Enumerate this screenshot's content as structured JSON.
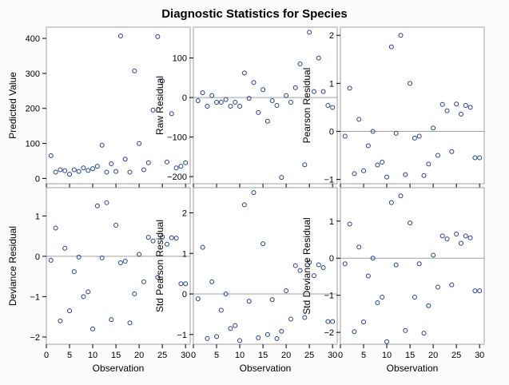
{
  "title": "Diagnostic Statistics for Species",
  "colors": {
    "marker": "#1f3f8f",
    "frame": "#a0a0a0",
    "refline": "#a0a0a0",
    "plot_bg": "#ffffff",
    "page_bg": "#fbfbfb"
  },
  "chart_data": [
    {
      "type": "scatter",
      "ylabel": "Predicted Value",
      "xlabel": "",
      "xlim": [
        0,
        31
      ],
      "ylim": [
        -15,
        432
      ],
      "xticks": [
        0,
        5,
        10,
        15,
        20,
        25,
        30
      ],
      "yticks": [
        0,
        100,
        200,
        300,
        400
      ],
      "reference_line": null,
      "x": [
        1,
        2,
        3,
        4,
        5,
        6,
        7,
        8,
        9,
        10,
        11,
        12,
        13,
        14,
        15,
        16,
        17,
        18,
        19,
        20,
        21,
        22,
        23,
        24,
        25,
        26,
        27,
        28,
        29,
        30
      ],
      "y": [
        65,
        18,
        25,
        22,
        12,
        25,
        20,
        30,
        23,
        28,
        35,
        95,
        18,
        42,
        20,
        407,
        55,
        18,
        307,
        100,
        25,
        45,
        195,
        405,
        278,
        47,
        185,
        30,
        35,
        45
      ]
    },
    {
      "type": "scatter",
      "ylabel": "Raw Residual",
      "xlabel": "",
      "xlim": [
        0,
        31
      ],
      "ylim": [
        -218,
        178
      ],
      "xticks": [
        0,
        5,
        10,
        15,
        20,
        25,
        30
      ],
      "yticks": [
        -200,
        -100,
        0,
        100
      ],
      "reference_line": 0,
      "x": [
        1,
        2,
        3,
        4,
        5,
        6,
        7,
        8,
        9,
        10,
        11,
        12,
        13,
        14,
        15,
        16,
        17,
        18,
        19,
        20,
        21,
        22,
        23,
        24,
        25,
        26,
        27,
        28,
        29,
        30
      ],
      "y": [
        -8,
        12,
        -22,
        5,
        -12,
        -12,
        -5,
        -22,
        -12,
        -22,
        62,
        -2,
        38,
        -38,
        20,
        -60,
        -8,
        -20,
        -202,
        5,
        -12,
        25,
        85,
        -170,
        165,
        15,
        100,
        15,
        -20,
        -25
      ]
    },
    {
      "type": "scatter",
      "ylabel": "Pearson Residual",
      "xlabel": "",
      "xlim": [
        0,
        31
      ],
      "ylim": [
        -1.09,
        2.17
      ],
      "xticks": [
        0,
        5,
        10,
        15,
        20,
        25,
        30
      ],
      "yticks": [
        -1,
        0,
        1,
        2
      ],
      "reference_line": 0,
      "x": [
        1,
        2,
        3,
        4,
        5,
        6,
        7,
        8,
        9,
        10,
        11,
        12,
        13,
        14,
        15,
        16,
        17,
        18,
        19,
        20,
        21,
        22,
        23,
        24,
        25,
        26,
        27,
        28,
        29,
        30
      ],
      "y": [
        -0.1,
        0.9,
        -0.88,
        0.25,
        -0.82,
        -0.3,
        0,
        -0.7,
        -0.64,
        -0.95,
        1.76,
        -0.04,
        2,
        -0.9,
        1,
        -0.14,
        -0.1,
        -0.92,
        -0.68,
        0.07,
        -0.5,
        0.56,
        0.43,
        -0.42,
        0.57,
        0.36,
        0.54,
        0.5,
        -0.55,
        -0.55
      ]
    },
    {
      "type": "scatter",
      "ylabel": "Deviance Residual",
      "xlabel": "Observation",
      "xlim": [
        0,
        31
      ],
      "ylim": [
        -2.18,
        1.7
      ],
      "xticks": [
        0,
        5,
        10,
        15,
        20,
        25,
        30
      ],
      "yticks": [
        -2,
        -1,
        0,
        1
      ],
      "reference_line": 0,
      "x": [
        1,
        2,
        3,
        4,
        5,
        6,
        7,
        8,
        9,
        10,
        11,
        12,
        13,
        14,
        15,
        16,
        17,
        18,
        19,
        20,
        21,
        22,
        23,
        24,
        25,
        26,
        27,
        28,
        29,
        30
      ],
      "y": [
        -0.1,
        0.7,
        -1.6,
        0.2,
        -1.35,
        -0.38,
        -0.02,
        -1,
        -0.88,
        -1.8,
        1.25,
        -0.04,
        1.33,
        -1.57,
        0.77,
        -0.16,
        -0.12,
        -1.65,
        -0.93,
        0.05,
        -0.63,
        0.47,
        0.38,
        -0.52,
        0.48,
        0.3,
        0.46,
        0.45,
        -0.68,
        -0.68
      ]
    },
    {
      "type": "scatter",
      "ylabel": "Std Pearson Residual",
      "xlabel": "Observation",
      "xlim": [
        0,
        31
      ],
      "ylim": [
        -1.24,
        2.62
      ],
      "xticks": [
        0,
        5,
        10,
        15,
        20,
        25,
        30
      ],
      "yticks": [
        -1,
        0,
        1,
        2
      ],
      "reference_line": 0,
      "x": [
        1,
        2,
        3,
        4,
        5,
        6,
        7,
        8,
        9,
        10,
        11,
        12,
        13,
        14,
        15,
        16,
        17,
        18,
        19,
        20,
        21,
        22,
        23,
        24,
        25,
        26,
        27,
        28,
        29,
        30
      ],
      "y": [
        -0.12,
        1.15,
        -1.1,
        0.3,
        -1.05,
        -0.4,
        0,
        -0.85,
        -0.78,
        -1.15,
        2.2,
        -0.18,
        2.5,
        -1.08,
        1.24,
        -1,
        -0.14,
        -1.1,
        -0.92,
        0.08,
        -0.62,
        0.7,
        0.58,
        -0.58,
        0.78,
        0.45,
        0.72,
        0.65,
        -0.68,
        -0.68
      ]
    },
    {
      "type": "scatter",
      "ylabel": "Std Deviance Residual",
      "xlabel": "Observation",
      "xlim": [
        0,
        31
      ],
      "ylim": [
        -2.32,
        1.9
      ],
      "xticks": [
        0,
        5,
        10,
        15,
        20,
        25,
        30
      ],
      "yticks": [
        -2,
        -1,
        0,
        1
      ],
      "reference_line": 0,
      "x": [
        1,
        2,
        3,
        4,
        5,
        6,
        7,
        8,
        9,
        10,
        11,
        12,
        13,
        14,
        15,
        16,
        17,
        18,
        19,
        20,
        21,
        22,
        23,
        24,
        25,
        26,
        27,
        28,
        29,
        30
      ],
      "y": [
        -0.15,
        0.92,
        -1.98,
        0.3,
        -1.72,
        -0.48,
        0,
        -1.2,
        -1.05,
        -2.25,
        1.5,
        -0.18,
        1.68,
        -1.95,
        0.95,
        -1.05,
        -0.15,
        -2.02,
        -1.28,
        0.08,
        -0.78,
        0.6,
        0.52,
        -0.72,
        0.65,
        0.4,
        0.6,
        0.55,
        -0.88,
        -0.88
      ]
    }
  ]
}
